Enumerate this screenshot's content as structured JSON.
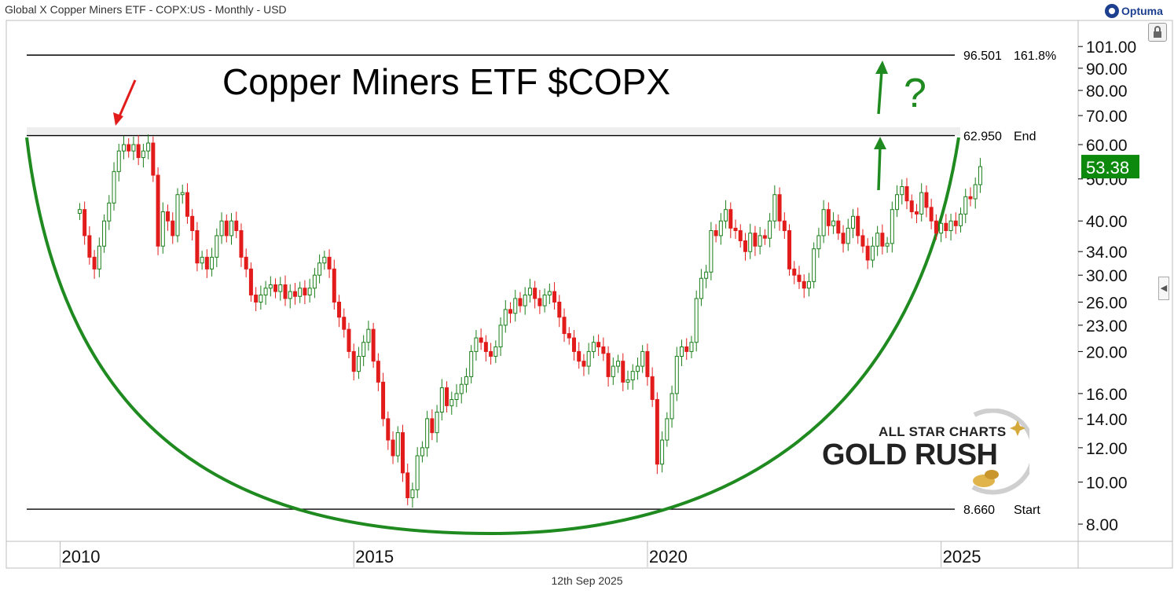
{
  "header": {
    "title": "Global X Copper Miners ETF - COPX:US - Monthly - USD"
  },
  "brand": {
    "label": "Optuma"
  },
  "footer": {
    "date": "12th Sep 2025"
  },
  "logo": {
    "line1": "ALL STAR CHARTS",
    "line2": "GOLD RUSH"
  },
  "colors": {
    "up": "#1a7f1a",
    "down": "#e21b1b",
    "arc": "#1f8a1f",
    "badge": "#0d8a0d",
    "arrow_red": "#e21b1b"
  },
  "chart_data": {
    "type": "candlestick",
    "title": "Copper Miners ETF $COPX",
    "scale": "log",
    "ylim": [
      7.3,
      116
    ],
    "yticks": [
      8,
      10,
      12,
      14,
      16,
      20,
      23,
      26,
      30,
      34,
      40,
      50,
      60,
      70,
      80,
      90,
      101
    ],
    "ytick_labels": [
      "8.00",
      "10.00",
      "12.00",
      "14.00",
      "16.00",
      "20.00",
      "23.00",
      "26.00",
      "30.00",
      "34.00",
      "40.00",
      "50.00",
      "60.00",
      "70.00",
      "80.00",
      "90.00",
      "101.00"
    ],
    "x_range": [
      "2009-02",
      "2027-05"
    ],
    "xticks": [
      {
        "year": 2010,
        "label": "2010"
      },
      {
        "year": 2015,
        "label": "2015"
      },
      {
        "year": 2020,
        "label": "2020"
      },
      {
        "year": 2025,
        "label": "2025"
      }
    ],
    "last_price": {
      "value": 53.38,
      "label": "53.38"
    },
    "levels": [
      {
        "value": 96.501,
        "label": "96.501",
        "tag": "161.8%"
      },
      {
        "value": 62.95,
        "label": "62.950",
        "tag": "End"
      },
      {
        "value": 8.66,
        "label": "8.660",
        "tag": "Start"
      }
    ],
    "annotations": {
      "question": "?"
    },
    "series": [
      {
        "points": [
          [
            "2010-05",
            42.5
          ],
          [
            "2010-06",
            37.0
          ],
          [
            "2010-07",
            33.0
          ],
          [
            "2010-08",
            31.0
          ],
          [
            "2010-09",
            35.0
          ],
          [
            "2010-10",
            40.0
          ],
          [
            "2010-11",
            44.0
          ],
          [
            "2010-12",
            52.0
          ],
          [
            "2011-01",
            58.0
          ],
          [
            "2011-02",
            60.0
          ],
          [
            "2011-03",
            58.0
          ],
          [
            "2011-04",
            60.0
          ],
          [
            "2011-05",
            56.0
          ],
          [
            "2011-06",
            58.0
          ],
          [
            "2011-07",
            60.5
          ],
          [
            "2011-08",
            51.0
          ],
          [
            "2011-09",
            35.0
          ],
          [
            "2011-10",
            42.0
          ],
          [
            "2011-11",
            40.0
          ],
          [
            "2011-12",
            37.0
          ],
          [
            "2012-01",
            46.0
          ],
          [
            "2012-02",
            46.5
          ],
          [
            "2012-03",
            41.0
          ],
          [
            "2012-04",
            38.0
          ],
          [
            "2012-05",
            32.0
          ],
          [
            "2012-06",
            33.0
          ],
          [
            "2012-07",
            31.0
          ],
          [
            "2012-08",
            33.0
          ],
          [
            "2012-09",
            37.0
          ],
          [
            "2012-10",
            40.0
          ],
          [
            "2012-11",
            37.0
          ],
          [
            "2012-12",
            40.0
          ],
          [
            "2013-01",
            38.0
          ],
          [
            "2013-02",
            33.0
          ],
          [
            "2013-03",
            31.0
          ],
          [
            "2013-04",
            27.0
          ],
          [
            "2013-05",
            26.0
          ],
          [
            "2013-06",
            27.0
          ],
          [
            "2013-07",
            28.0
          ],
          [
            "2013-08",
            28.5
          ],
          [
            "2013-09",
            27.5
          ],
          [
            "2013-10",
            28.5
          ],
          [
            "2013-11",
            26.5
          ],
          [
            "2013-12",
            27.5
          ],
          [
            "2014-01",
            26.8
          ],
          [
            "2014-02",
            28.0
          ],
          [
            "2014-03",
            27.0
          ],
          [
            "2014-04",
            28.0
          ],
          [
            "2014-05",
            30.0
          ],
          [
            "2014-06",
            32.0
          ],
          [
            "2014-07",
            33.0
          ],
          [
            "2014-08",
            31.0
          ],
          [
            "2014-09",
            26.0
          ],
          [
            "2014-10",
            24.0
          ],
          [
            "2014-11",
            22.5
          ],
          [
            "2014-12",
            20.0
          ],
          [
            "2015-01",
            18.0
          ],
          [
            "2015-02",
            19.5
          ],
          [
            "2015-03",
            21.0
          ],
          [
            "2015-04",
            22.5
          ],
          [
            "2015-05",
            19.0
          ],
          [
            "2015-06",
            17.0
          ],
          [
            "2015-07",
            14.0
          ],
          [
            "2015-08",
            12.5
          ],
          [
            "2015-09",
            11.5
          ],
          [
            "2015-10",
            13.0
          ],
          [
            "2015-11",
            10.5
          ],
          [
            "2015-12",
            9.2
          ],
          [
            "2016-01",
            9.6
          ],
          [
            "2016-02",
            11.5
          ],
          [
            "2016-03",
            12.0
          ],
          [
            "2016-04",
            14.0
          ],
          [
            "2016-05",
            13.0
          ],
          [
            "2016-06",
            14.5
          ],
          [
            "2016-07",
            16.5
          ],
          [
            "2016-08",
            15.0
          ],
          [
            "2016-09",
            15.5
          ],
          [
            "2016-10",
            16.0
          ],
          [
            "2016-11",
            16.8
          ],
          [
            "2016-12",
            17.5
          ],
          [
            "2017-01",
            20.0
          ],
          [
            "2017-02",
            21.5
          ],
          [
            "2017-03",
            21.0
          ],
          [
            "2017-04",
            20.0
          ],
          [
            "2017-05",
            19.5
          ],
          [
            "2017-06",
            20.5
          ],
          [
            "2017-07",
            23.0
          ],
          [
            "2017-08",
            25.0
          ],
          [
            "2017-09",
            24.5
          ],
          [
            "2017-10",
            26.5
          ],
          [
            "2017-11",
            25.5
          ],
          [
            "2017-12",
            27.0
          ],
          [
            "2018-01",
            28.0
          ],
          [
            "2018-02",
            26.5
          ],
          [
            "2018-03",
            25.5
          ],
          [
            "2018-04",
            27.0
          ],
          [
            "2018-05",
            27.5
          ],
          [
            "2018-06",
            26.0
          ],
          [
            "2018-07",
            24.0
          ],
          [
            "2018-08",
            22.0
          ],
          [
            "2018-09",
            21.5
          ],
          [
            "2018-10",
            20.0
          ],
          [
            "2018-11",
            19.0
          ],
          [
            "2018-12",
            18.5
          ],
          [
            "2019-01",
            20.0
          ],
          [
            "2019-02",
            21.0
          ],
          [
            "2019-03",
            20.5
          ],
          [
            "2019-04",
            19.8
          ],
          [
            "2019-05",
            17.5
          ],
          [
            "2019-06",
            18.5
          ],
          [
            "2019-07",
            19.0
          ],
          [
            "2019-08",
            17.0
          ],
          [
            "2019-09",
            17.2
          ],
          [
            "2019-10",
            18.0
          ],
          [
            "2019-11",
            18.5
          ],
          [
            "2019-12",
            20.0
          ],
          [
            "2020-01",
            17.5
          ],
          [
            "2020-02",
            15.5
          ],
          [
            "2020-03",
            11.0
          ],
          [
            "2020-04",
            12.5
          ],
          [
            "2020-05",
            14.0
          ],
          [
            "2020-06",
            16.0
          ],
          [
            "2020-07",
            19.5
          ],
          [
            "2020-08",
            20.5
          ],
          [
            "2020-09",
            20.0
          ],
          [
            "2020-10",
            21.0
          ],
          [
            "2020-11",
            26.5
          ],
          [
            "2020-12",
            29.5
          ],
          [
            "2021-01",
            30.5
          ],
          [
            "2021-02",
            38.0
          ],
          [
            "2021-03",
            37.0
          ],
          [
            "2021-04",
            40.0
          ],
          [
            "2021-05",
            42.5
          ],
          [
            "2021-06",
            38.5
          ],
          [
            "2021-07",
            38.0
          ],
          [
            "2021-08",
            36.0
          ],
          [
            "2021-09",
            34.0
          ],
          [
            "2021-10",
            37.5
          ],
          [
            "2021-11",
            35.0
          ],
          [
            "2021-12",
            37.0
          ],
          [
            "2022-01",
            36.5
          ],
          [
            "2022-02",
            40.0
          ],
          [
            "2022-03",
            46.0
          ],
          [
            "2022-04",
            40.0
          ],
          [
            "2022-05",
            38.0
          ],
          [
            "2022-06",
            31.0
          ],
          [
            "2022-07",
            30.0
          ],
          [
            "2022-08",
            29.0
          ],
          [
            "2022-09",
            28.0
          ],
          [
            "2022-10",
            29.0
          ],
          [
            "2022-11",
            34.5
          ],
          [
            "2022-12",
            37.0
          ],
          [
            "2023-01",
            42.5
          ],
          [
            "2023-02",
            39.0
          ],
          [
            "2023-03",
            40.0
          ],
          [
            "2023-04",
            37.5
          ],
          [
            "2023-05",
            35.5
          ],
          [
            "2023-06",
            38.5
          ],
          [
            "2023-07",
            41.0
          ],
          [
            "2023-08",
            37.0
          ],
          [
            "2023-09",
            35.0
          ],
          [
            "2023-10",
            32.5
          ],
          [
            "2023-11",
            35.0
          ],
          [
            "2023-12",
            37.5
          ],
          [
            "2024-01",
            35.0
          ],
          [
            "2024-02",
            35.5
          ],
          [
            "2024-03",
            42.5
          ],
          [
            "2024-04",
            46.0
          ],
          [
            "2024-05",
            48.0
          ],
          [
            "2024-06",
            44.5
          ],
          [
            "2024-07",
            42.0
          ],
          [
            "2024-08",
            41.5
          ],
          [
            "2024-09",
            46.5
          ],
          [
            "2024-10",
            43.0
          ],
          [
            "2024-11",
            40.0
          ],
          [
            "2024-12",
            37.5
          ],
          [
            "2025-01",
            39.5
          ],
          [
            "2025-02",
            38.0
          ],
          [
            "2025-03",
            40.0
          ],
          [
            "2025-04",
            39.0
          ],
          [
            "2025-05",
            41.5
          ],
          [
            "2025-06",
            45.5
          ],
          [
            "2025-07",
            45.0
          ],
          [
            "2025-08",
            48.5
          ],
          [
            "2025-09",
            53.38
          ]
        ]
      }
    ]
  }
}
